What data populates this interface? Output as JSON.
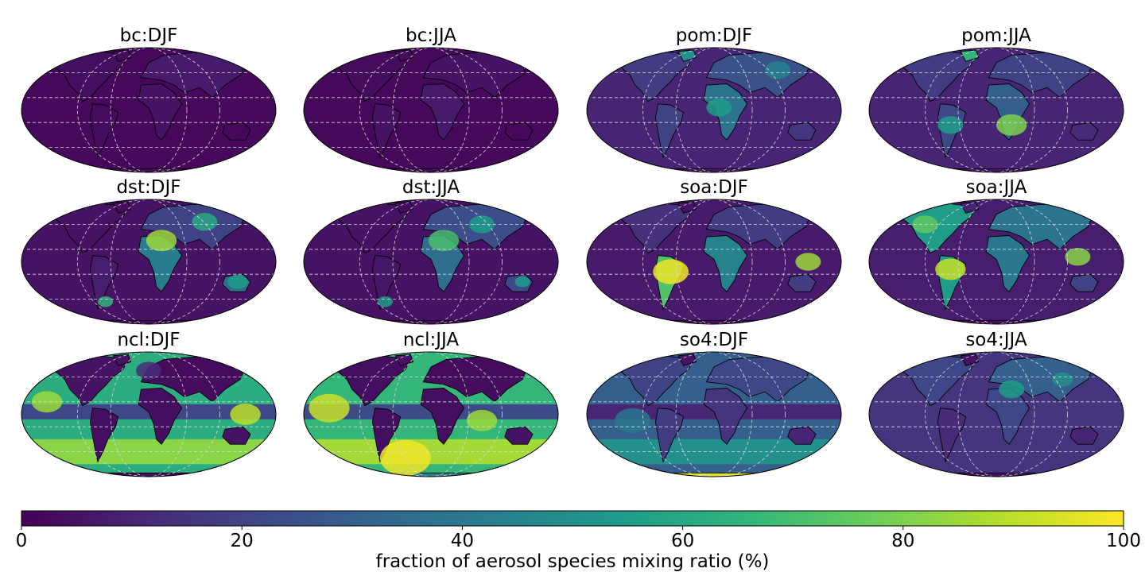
{
  "chart_data": {
    "type": "heatmap",
    "projection": "global elliptical (Robinson-style) maps with coastlines and dashed gridlines",
    "colormap": "viridis",
    "grid": true,
    "panels": [
      {
        "title": "bc:DJF",
        "species": "bc",
        "season": "DJF"
      },
      {
        "title": "bc:JJA",
        "species": "bc",
        "season": "JJA"
      },
      {
        "title": "pom:DJF",
        "species": "pom",
        "season": "DJF"
      },
      {
        "title": "pom:JJA",
        "species": "pom",
        "season": "JJA"
      },
      {
        "title": "dst:DJF",
        "species": "dst",
        "season": "DJF"
      },
      {
        "title": "dst:JJA",
        "species": "dst",
        "season": "JJA"
      },
      {
        "title": "soa:DJF",
        "species": "soa",
        "season": "DJF"
      },
      {
        "title": "soa:JJA",
        "species": "soa",
        "season": "JJA"
      },
      {
        "title": "ncl:DJF",
        "species": "ncl",
        "season": "DJF"
      },
      {
        "title": "ncl:JJA",
        "species": "ncl",
        "season": "JJA"
      },
      {
        "title": "so4:DJF",
        "species": "so4",
        "season": "DJF"
      },
      {
        "title": "so4:JJA",
        "species": "so4",
        "season": "JJA"
      }
    ],
    "colorbar": {
      "label": "fraction of aerosol species mixing ratio (%)",
      "range": [
        0,
        100
      ],
      "ticks": [
        "0",
        "20",
        "40",
        "60",
        "80",
        "100"
      ],
      "placement": "bottom"
    }
  },
  "colors": {
    "viridis": [
      "#440154",
      "#482878",
      "#3e4989",
      "#31688e",
      "#26828e",
      "#1f9e89",
      "#35b779",
      "#6ece58",
      "#b5de2b",
      "#fde725"
    ],
    "coastline": "#000000",
    "gridline": "#d9d9d9"
  }
}
